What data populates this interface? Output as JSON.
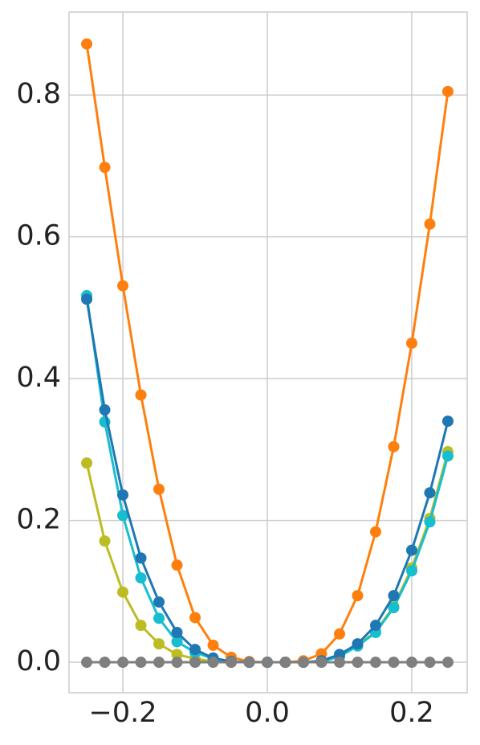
{
  "chart_data": {
    "type": "line",
    "x": [
      -0.25,
      -0.225,
      -0.2,
      -0.175,
      -0.15,
      -0.125,
      -0.1,
      -0.075,
      -0.05,
      -0.025,
      0,
      0.025,
      0.05,
      0.075,
      0.1,
      0.125,
      0.15,
      0.175,
      0.2,
      0.225,
      0.25
    ],
    "series": [
      {
        "color": "#ff7f0e",
        "values": [
          0.872,
          0.698,
          0.531,
          0.377,
          0.244,
          0.137,
          0.063,
          0.024,
          0.007,
          0.001,
          0,
          0,
          0.002,
          0.012,
          0.04,
          0.094,
          0.184,
          0.304,
          0.45,
          0.618,
          0.805
        ]
      },
      {
        "color": "#bcbd22",
        "values": [
          0.281,
          0.171,
          0.099,
          0.052,
          0.026,
          0.011,
          0.005,
          0.001,
          0,
          0,
          0,
          0,
          0,
          0.001,
          0.01,
          0.024,
          0.043,
          0.079,
          0.133,
          0.203,
          0.297
        ]
      },
      {
        "color": "#17becf",
        "values": [
          0.517,
          0.339,
          0.207,
          0.119,
          0.062,
          0.029,
          0.014,
          0.005,
          0.001,
          0,
          0,
          0,
          0,
          0.001,
          0.008,
          0.023,
          0.042,
          0.077,
          0.129,
          0.198,
          0.291
        ]
      },
      {
        "color": "#1f77b4",
        "values": [
          0.512,
          0.356,
          0.236,
          0.147,
          0.085,
          0.042,
          0.018,
          0.006,
          0.001,
          0,
          0,
          0,
          0,
          0.002,
          0.011,
          0.026,
          0.052,
          0.094,
          0.158,
          0.239,
          0.34
        ]
      },
      {
        "color": "#7f7f7f",
        "values": [
          0,
          0,
          0,
          0,
          0,
          0,
          0,
          0,
          0,
          0,
          0,
          0,
          0,
          0,
          0,
          0,
          0,
          0,
          0,
          0,
          0
        ]
      }
    ],
    "xlim": [
      -0.2745,
      0.2767
    ],
    "ylim": [
      -0.043,
      0.917
    ],
    "xticks": [
      {
        "value": -0.2,
        "label": "−0.2"
      },
      {
        "value": 0,
        "label": "0.0"
      },
      {
        "value": 0.2,
        "label": "0.2"
      }
    ],
    "yticks": [
      {
        "value": 0,
        "label": "0.0"
      },
      {
        "value": 0.2,
        "label": "0.2"
      },
      {
        "value": 0.4,
        "label": "0.4"
      },
      {
        "value": 0.6,
        "label": "0.6"
      },
      {
        "value": 0.8,
        "label": "0.8"
      }
    ],
    "grid": true
  }
}
